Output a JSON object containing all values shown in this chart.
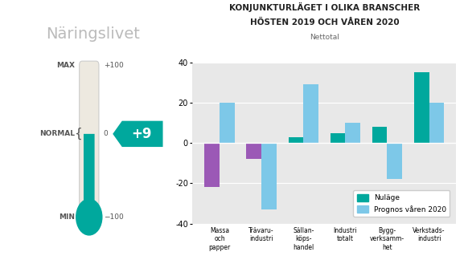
{
  "title_line1": "KONJUNKTURLÄGET I OLIKA BRANSCHER",
  "title_line2": "HÖSTEN 2019 OCH VÅREN 2020",
  "subtitle": "Nettotal",
  "categories": [
    "Massa\noch\npapper",
    "Trävaru-\nindustri",
    "Sällan-\nköps-\nhandel",
    "Industri\ntotalt",
    "Bygg-\nverksamm-\nhet",
    "Verkstads-\nindustri"
  ],
  "nuläge_values": [
    -22,
    -8,
    3,
    5,
    8,
    35
  ],
  "prognos_values": [
    20,
    -33,
    29,
    10,
    -18,
    20
  ],
  "color_nulage_purple": "#9B59B6",
  "color_nulage_teal": "#00A89D",
  "color_prognos": "#7DC8E8",
  "ylim": [
    -40,
    40
  ],
  "yticks": [
    -40,
    -20,
    0,
    20,
    40
  ],
  "background_chart": "#E8E8E8",
  "background_fig": "#FFFFFF",
  "thermometer_label": "Näringslivet",
  "thermometer_value": "+9",
  "thermo_color": "#00A89D",
  "legend_nulage": "Nuläge",
  "legend_prognos": "Prognos våren 2020",
  "nuläge_is_purple": [
    true,
    true,
    false,
    false,
    false,
    false
  ]
}
